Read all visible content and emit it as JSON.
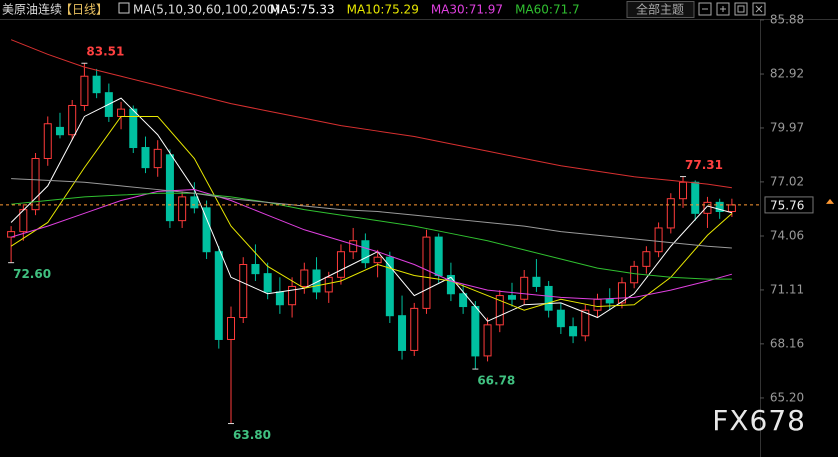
{
  "chart_data": {
    "type": "candlestick",
    "title": "美原油连续",
    "period": "【日线】",
    "indicator": "MA(5,10,30,60,100,200)",
    "theme_button": "全部主题",
    "watermark": "FX678",
    "ylim": [
      62.9,
      86.97
    ],
    "yticks": [
      85.88,
      82.92,
      79.97,
      77.02,
      74.06,
      71.11,
      68.16,
      {
        "value": 65.2,
        "label": "65.20"
      }
    ],
    "up_color": "#ff3b3b",
    "down_color": "#00c0a0",
    "open": [
      74.0,
      74.3,
      75.5,
      78.3,
      80.0,
      79.6,
      81.2,
      82.8,
      81.9,
      80.6,
      81.0,
      78.9,
      77.8,
      78.5,
      74.9,
      76.2,
      75.6,
      73.2,
      68.4,
      69.6,
      72.5,
      72.0,
      71.0,
      70.3,
      71.3,
      72.2,
      71.0,
      71.8,
      73.2,
      73.8,
      72.6,
      72.9,
      69.7,
      67.8,
      70.1,
      74.0,
      71.9,
      70.9,
      70.2,
      67.5,
      69.2,
      70.8,
      70.6,
      71.8,
      71.3,
      70.0,
      69.1,
      68.6,
      70.0,
      70.6,
      70.4,
      71.5,
      72.4,
      73.2,
      74.5,
      76.1,
      77.0,
      75.3,
      75.9,
      75.4
    ],
    "high": [
      74.6,
      75.8,
      78.6,
      80.6,
      80.8,
      81.5,
      83.51,
      83.2,
      82.4,
      81.4,
      81.2,
      79.5,
      79.3,
      78.8,
      76.5,
      77.0,
      76.0,
      73.5,
      70.2,
      72.9,
      73.6,
      72.6,
      71.8,
      71.8,
      72.6,
      72.9,
      72.1,
      73.6,
      74.5,
      74.2,
      73.3,
      73.2,
      70.8,
      70.4,
      74.4,
      74.2,
      72.6,
      71.4,
      70.5,
      69.6,
      71.1,
      71.5,
      72.2,
      72.8,
      71.6,
      70.4,
      69.6,
      70.3,
      70.9,
      71.2,
      71.8,
      72.7,
      73.5,
      74.8,
      76.4,
      77.31,
      77.1,
      76.2,
      76.1,
      76.1
    ],
    "low": [
      72.6,
      73.8,
      75.2,
      77.9,
      79.4,
      79.3,
      80.9,
      81.6,
      80.3,
      79.9,
      78.6,
      77.5,
      77.3,
      74.5,
      74.5,
      75.3,
      72.8,
      67.9,
      63.8,
      69.3,
      71.6,
      70.6,
      69.8,
      69.6,
      70.9,
      70.6,
      70.4,
      71.4,
      72.8,
      72.3,
      71.8,
      69.3,
      67.3,
      67.5,
      69.8,
      71.5,
      70.5,
      69.8,
      66.78,
      67.2,
      68.8,
      70.2,
      70.3,
      71.0,
      69.6,
      68.7,
      68.2,
      68.3,
      69.6,
      70.0,
      70.1,
      71.2,
      72.0,
      72.9,
      74.2,
      75.6,
      74.9,
      74.5,
      75.0,
      75.1
    ],
    "close": [
      74.3,
      75.5,
      78.3,
      80.2,
      79.6,
      81.2,
      82.8,
      81.9,
      80.6,
      81.0,
      78.9,
      77.8,
      78.8,
      74.9,
      76.2,
      75.6,
      73.2,
      68.4,
      69.6,
      72.5,
      72.0,
      71.0,
      70.3,
      71.3,
      72.2,
      71.0,
      71.8,
      73.2,
      73.8,
      72.6,
      72.9,
      69.7,
      67.8,
      70.1,
      74.0,
      71.9,
      70.9,
      70.2,
      67.5,
      69.2,
      70.8,
      70.6,
      71.8,
      71.3,
      70.0,
      69.1,
      68.6,
      70.0,
      70.6,
      70.4,
      71.5,
      72.4,
      73.2,
      74.5,
      76.1,
      77.0,
      75.3,
      75.9,
      75.4,
      75.76
    ],
    "series": [
      {
        "name": "MA5:75.33",
        "color": "#ffffff",
        "x": [
          0,
          3,
          6,
          9,
          12,
          15,
          18,
          21,
          24,
          27,
          30,
          33,
          36,
          39,
          42,
          45,
          48,
          51,
          54,
          57,
          59
        ],
        "values": [
          74.8,
          76.8,
          80.6,
          81.6,
          79.6,
          76.6,
          71.8,
          70.9,
          71.2,
          72.2,
          73.2,
          70.8,
          71.8,
          69.4,
          70.3,
          70.4,
          69.6,
          70.9,
          73.5,
          75.7,
          75.33
        ]
      },
      {
        "name": "MA10:75.29",
        "color": "#e8e800",
        "x": [
          0,
          3,
          6,
          9,
          12,
          15,
          18,
          21,
          24,
          27,
          30,
          33,
          36,
          39,
          42,
          45,
          48,
          51,
          54,
          57,
          59
        ],
        "values": [
          73.5,
          74.8,
          77.8,
          80.6,
          80.6,
          78.3,
          74.6,
          72.4,
          71.2,
          71.6,
          72.5,
          71.9,
          71.6,
          70.8,
          70.0,
          70.6,
          70.2,
          70.3,
          71.8,
          74.1,
          75.29
        ]
      },
      {
        "name": "MA30:71.97",
        "color": "#e040e0",
        "x": [
          0,
          3,
          6,
          9,
          12,
          15,
          18,
          21,
          24,
          27,
          30,
          33,
          36,
          39,
          42,
          45,
          48,
          51,
          54,
          57,
          59
        ],
        "values": [
          74.0,
          74.6,
          75.3,
          76.0,
          76.5,
          76.6,
          76.0,
          75.2,
          74.4,
          73.8,
          73.2,
          72.5,
          71.6,
          71.1,
          70.9,
          70.7,
          70.6,
          70.7,
          71.1,
          71.6,
          71.97
        ]
      },
      {
        "name": "MA60:71.7",
        "color": "#30c030",
        "x": [
          0,
          3,
          6,
          9,
          12,
          15,
          18,
          21,
          24,
          27,
          30,
          33,
          36,
          39,
          42,
          45,
          48,
          51,
          54,
          57,
          59
        ],
        "values": [
          75.8,
          76.0,
          76.2,
          76.3,
          76.4,
          76.4,
          76.2,
          75.9,
          75.5,
          75.2,
          74.9,
          74.6,
          74.2,
          73.8,
          73.3,
          72.8,
          72.3,
          72.0,
          71.8,
          71.7,
          71.7
        ]
      },
      {
        "color": "#9a9a9a",
        "x": [
          0,
          3,
          6,
          9,
          12,
          15,
          18,
          21,
          24,
          27,
          30,
          33,
          36,
          39,
          42,
          45,
          48,
          51,
          54,
          57,
          59
        ],
        "values": [
          77.2,
          77.1,
          77.0,
          76.8,
          76.6,
          76.4,
          76.1,
          75.9,
          75.7,
          75.5,
          75.4,
          75.2,
          75.0,
          74.8,
          74.6,
          74.3,
          74.1,
          73.9,
          73.7,
          73.5,
          73.4
        ]
      },
      {
        "color": "#d83030",
        "x": [
          0,
          3,
          6,
          9,
          12,
          15,
          18,
          21,
          24,
          27,
          30,
          33,
          36,
          39,
          42,
          45,
          48,
          51,
          54,
          57,
          59
        ],
        "values": [
          84.8,
          84.0,
          83.3,
          82.8,
          82.3,
          81.8,
          81.3,
          80.9,
          80.5,
          80.1,
          79.8,
          79.5,
          79.1,
          78.7,
          78.3,
          77.9,
          77.6,
          77.3,
          77.1,
          76.9,
          76.7
        ]
      }
    ],
    "annotations": [
      {
        "x": 6,
        "value": 83.51,
        "color": "#ff4040"
      },
      {
        "x": 0,
        "value": 72.6,
        "label": "72.60",
        "color": "#40c080"
      },
      {
        "x": 18,
        "value": 63.8,
        "label": "63.80",
        "color": "#40c080"
      },
      {
        "x": 38,
        "value": 66.78,
        "color": "#40c080"
      },
      {
        "x": 55,
        "value": 77.31,
        "color": "#ff4040"
      }
    ],
    "last_price": 75.76,
    "last_price_color": "#ff9933"
  }
}
